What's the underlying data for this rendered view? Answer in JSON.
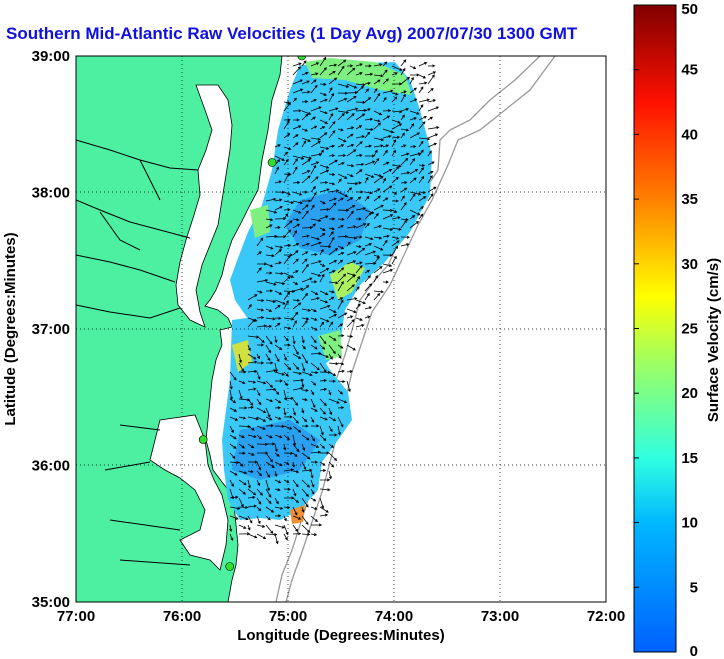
{
  "map": {
    "title": "Southern Mid-Atlantic Raw Velocities (1 Day Avg) 2007/07/30 1300 GMT",
    "xlabel": "Longitude (Degrees:Minutes)",
    "ylabel": "Latitude (Degrees:Minutes)",
    "lon_ticks": [
      "77:00",
      "76:00",
      "75:00",
      "74:00",
      "73:00",
      "72:00"
    ],
    "lat_ticks": [
      "39:00",
      "38:00",
      "37:00",
      "36:00",
      "35:00"
    ],
    "lon_range": [
      -77,
      -72
    ],
    "lat_range": [
      35,
      39
    ],
    "land_color": "#4cf0a0",
    "grid": "dotted",
    "stations": [
      {
        "lon": -74.87,
        "lat": 39.0
      },
      {
        "lon": -75.15,
        "lat": 38.22
      },
      {
        "lon": -75.8,
        "lat": 36.19
      },
      {
        "lon": -75.55,
        "lat": 35.26
      }
    ]
  },
  "colorbar": {
    "label": "Surface Velocity (cm/s)",
    "ticks": [
      "0",
      "5",
      "10",
      "15",
      "20",
      "25",
      "30",
      "35",
      "40",
      "45",
      "50"
    ],
    "range": [
      0,
      50
    ],
    "colormap": "jet"
  }
}
